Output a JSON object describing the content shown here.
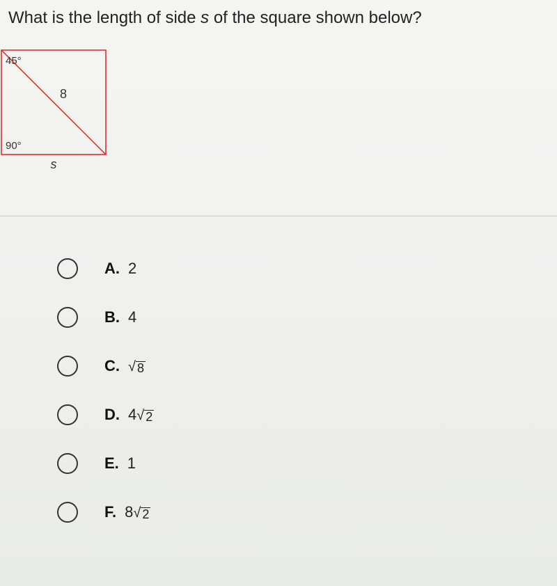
{
  "question": {
    "prefix": "What is the length of side ",
    "variable": "s",
    "suffix": " of the square shown below?"
  },
  "diagram": {
    "type": "square-with-diagonal",
    "square_size": 150,
    "stroke_color": "#d22",
    "stroke_width": 1.5,
    "angle_tl": "45°",
    "angle_bl": "90°",
    "diagonal_label": "8",
    "bottom_label": "s",
    "label_color": "#333",
    "label_fontsize": 18,
    "angle_fontsize": 15
  },
  "options": [
    {
      "letter": "A.",
      "plain": "2"
    },
    {
      "letter": "B.",
      "plain": "4"
    },
    {
      "letter": "C.",
      "coeff": "",
      "radicand": "8"
    },
    {
      "letter": "D.",
      "coeff": "4",
      "radicand": "2"
    },
    {
      "letter": "E.",
      "plain": "1"
    },
    {
      "letter": "F.",
      "coeff": "8",
      "radicand": "2"
    }
  ]
}
